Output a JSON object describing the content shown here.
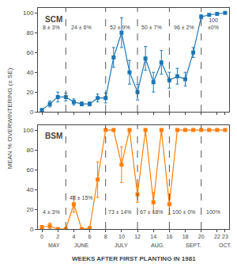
{
  "chart_data": [
    {
      "type": "line",
      "title": "SCM",
      "ylabel": "MEAN % OVERWINTERING (± SE)",
      "x": [
        0,
        1,
        2,
        3,
        4,
        5,
        6,
        7,
        8,
        9,
        10,
        11,
        12,
        13,
        14,
        15,
        16,
        17,
        18,
        19,
        20,
        21,
        22,
        23
      ],
      "values": [
        2,
        8,
        15,
        15,
        10,
        8,
        8,
        14,
        14,
        55,
        80,
        40,
        20,
        54,
        30,
        50,
        32,
        36,
        33,
        60,
        96,
        98,
        99,
        100
      ],
      "errors": [
        1,
        3,
        5,
        4,
        3,
        2,
        2,
        4,
        5,
        10,
        15,
        12,
        8,
        12,
        10,
        12,
        8,
        8,
        7,
        5,
        2,
        1,
        0,
        0
      ],
      "xlim": [
        -0.5,
        23.5
      ],
      "xticks": [
        0,
        2,
        4,
        6,
        8,
        10,
        12,
        14,
        16,
        18,
        20,
        22,
        23
      ],
      "ylim": [
        0,
        105
      ],
      "yticks": [
        0,
        20,
        40,
        60,
        80,
        100
      ],
      "vlines": [
        3,
        8,
        12,
        16,
        20
      ],
      "annotations": [
        {
          "x": 1.2,
          "y": 90,
          "text": "8 ± 3%"
        },
        {
          "x": 5.0,
          "y": 90,
          "text": "24 ± 6%"
        },
        {
          "x": 9.8,
          "y": 90,
          "text": "52 ± 9%"
        },
        {
          "x": 13.8,
          "y": 90,
          "text": "50 ± 7%"
        },
        {
          "x": 17.8,
          "y": 90,
          "text": "96 ± 2%"
        },
        {
          "x": 21.5,
          "y": 97,
          "text": "100\n±0%"
        }
      ],
      "tick_labels": "y",
      "marker": "square",
      "line_style": "solid",
      "grid": false
    },
    {
      "type": "line",
      "title": "BSM",
      "xlabel": "WEEKS AFTER FIRST PLANTING IN 1981",
      "x": [
        0,
        1,
        2,
        3,
        4,
        5,
        6,
        7,
        8,
        9,
        10,
        11,
        12,
        13,
        14,
        15,
        16,
        17,
        18,
        19,
        20,
        21,
        22,
        23
      ],
      "values": [
        2,
        3,
        0,
        0,
        25,
        0,
        1,
        50,
        100,
        100,
        65,
        100,
        35,
        100,
        27,
        100,
        25,
        100,
        100,
        100,
        100,
        100,
        100,
        100
      ],
      "errors": [
        1,
        3,
        0,
        0,
        8,
        0,
        1,
        18,
        0,
        0,
        18,
        0,
        8,
        0,
        10,
        0,
        10,
        0,
        0,
        0,
        0,
        0,
        0,
        0
      ],
      "xlim": [
        -0.5,
        23.5
      ],
      "xticks": [
        0,
        2,
        4,
        6,
        8,
        10,
        12,
        14,
        16,
        18,
        20,
        22,
        23
      ],
      "ylim": [
        0,
        105
      ],
      "yticks": [
        0,
        20,
        40,
        60,
        80,
        100
      ],
      "vlines": [
        3,
        8,
        12,
        16,
        20
      ],
      "annotations": [
        {
          "x": 1.2,
          "y": 22,
          "text": "4 ± 3%"
        },
        {
          "x": 5.0,
          "y": 36,
          "text": "48 ± 15%"
        },
        {
          "x": 9.8,
          "y": 22,
          "text": "73 ± 14%"
        },
        {
          "x": 13.8,
          "y": 22,
          "text": "67 ± 18%"
        },
        {
          "x": 17.8,
          "y": 22,
          "text": "100 ± 0%"
        },
        {
          "x": 21.5,
          "y": 22,
          "text": "100%"
        }
      ],
      "month_labels": [
        {
          "x": 1.5,
          "text": "MAY"
        },
        {
          "x": 5.0,
          "text": "JUNE"
        },
        {
          "x": 10.0,
          "text": "JULY"
        },
        {
          "x": 14.5,
          "text": "AUG."
        },
        {
          "x": 19.0,
          "text": "SEPT."
        },
        {
          "x": 23.0,
          "text": "OCT."
        }
      ],
      "marker": "square",
      "line_style": "solid",
      "grid": false
    }
  ]
}
